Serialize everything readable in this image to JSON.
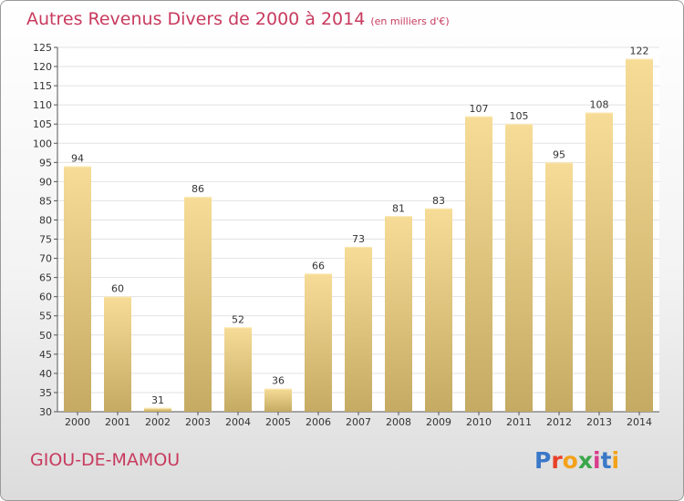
{
  "header": {
    "title": "Autres Revenus Divers de 2000 à 2014",
    "unit": "(en milliers d'€)"
  },
  "footer": {
    "commune": "GIOU-DE-MAMOU",
    "logo": "Proxiti"
  },
  "colors": {
    "title": "#c83a5e",
    "bar_light": "#f6dc97",
    "bar_dark": "#c4aa62",
    "grid": "#e2e2e2"
  },
  "chart_data": {
    "type": "bar",
    "title": "Autres Revenus Divers de 2000 à 2014",
    "subtitle": "(en milliers d'€)",
    "xlabel": "",
    "ylabel": "",
    "categories": [
      "2000",
      "2001",
      "2002",
      "2003",
      "2004",
      "2005",
      "2006",
      "2007",
      "2008",
      "2009",
      "2010",
      "2011",
      "2012",
      "2013",
      "2014"
    ],
    "values": [
      94,
      60,
      31,
      86,
      52,
      36,
      66,
      73,
      81,
      83,
      107,
      105,
      95,
      108,
      122
    ],
    "ylim": [
      30,
      125
    ],
    "yticks": [
      30,
      35,
      40,
      45,
      50,
      55,
      60,
      65,
      70,
      75,
      80,
      85,
      90,
      95,
      100,
      105,
      110,
      115,
      120,
      125
    ],
    "grid": true,
    "legend": "none"
  }
}
